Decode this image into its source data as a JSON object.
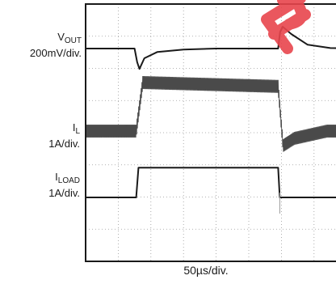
{
  "chart_data": {
    "type": "line",
    "x_scale": "50µs/div.",
    "grid": "dotted, 10 x 8 divisions",
    "series": [
      {
        "name": "VOUT",
        "scale": "200mV/div.",
        "x": [
          0,
          1.5,
          1.58,
          1.65,
          1.8,
          2.2,
          3,
          4,
          5,
          5.5,
          5.9,
          5.96,
          6.04,
          6.3,
          6.8,
          7.5,
          10
        ],
        "y": [
          0,
          0,
          -0.28,
          -0.42,
          -0.2,
          -0.07,
          -0.02,
          0,
          0,
          0,
          0,
          0.34,
          0.45,
          0.3,
          0.08,
          0.01,
          0
        ]
      },
      {
        "name": "IL",
        "scale": "1A/div.",
        "ripple": "dense switching ripple band",
        "x": [
          0,
          1.55,
          1.75,
          5.9,
          6.05,
          6.4,
          7.4,
          10
        ],
        "y": [
          0,
          0,
          1.0,
          0.92,
          -0.3,
          -0.15,
          0,
          0
        ]
      },
      {
        "name": "ILOAD",
        "scale": "1A/div.",
        "x": [
          0,
          1.55,
          1.62,
          5.9,
          5.95,
          10
        ],
        "y": [
          0,
          0,
          0.92,
          0.92,
          0,
          0
        ]
      }
    ],
    "xlabel": "50µs/div.",
    "labels": [
      {
        "main": "V",
        "sub": "OUT",
        "unit": "200mV/div."
      },
      {
        "main": "I",
        "sub": "L",
        "unit": "1A/div."
      },
      {
        "main": "I",
        "sub": "LOAD",
        "unit": "1A/div."
      }
    ],
    "colors": {
      "trace": "#1a1a1a",
      "ripple": "#4a4a4a",
      "grid": "#9a9a9a",
      "watermark": "#e8454d"
    }
  }
}
